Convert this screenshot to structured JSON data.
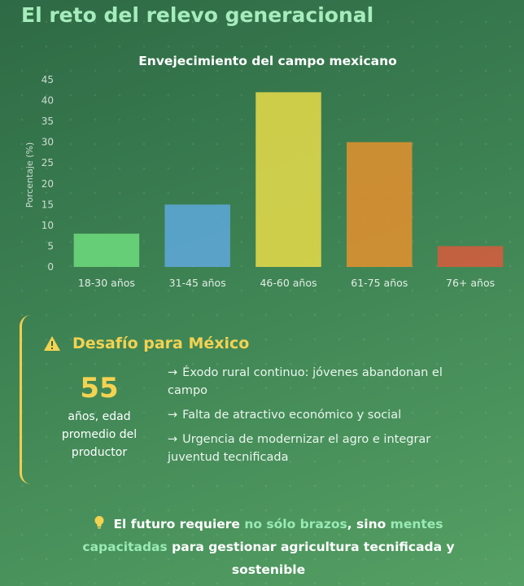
{
  "page": {
    "title": "El reto del relevo generacional"
  },
  "chart_data": {
    "type": "bar",
    "title": "Envejecimiento del campo mexicano",
    "xlabel": "",
    "ylabel": "Porcentaje (%)",
    "categories": [
      "18-30 años",
      "31-45 años",
      "46-60 años",
      "61-75 años",
      "76+ años"
    ],
    "values": [
      8,
      15,
      42,
      30,
      5
    ],
    "colors": [
      "#6fdc7c",
      "#5fa8dc",
      "#e8dc4a",
      "#e6902e",
      "#d95a3c"
    ],
    "ylim": [
      0,
      45
    ],
    "yticks": [
      0,
      5,
      10,
      15,
      20,
      25,
      30,
      35,
      40,
      45
    ],
    "grid": false,
    "legend": "none"
  },
  "challenge": {
    "icon": "warning-icon",
    "title": "Desafío para México",
    "stat_value": "55",
    "stat_label": "años, edad promedio del productor",
    "arrow": "→",
    "points": [
      "Éxodo rural continuo: jóvenes abandonan el campo",
      "Falta de atractivo económico y social",
      "Urgencia de modernizar el agro e integrar juventud tecnificada"
    ]
  },
  "footer": {
    "icon": "lightbulb-icon",
    "part1": "El futuro requiere ",
    "hl1": "no sólo brazos",
    "part2": ", sino ",
    "hl2": "mentes capacitadas",
    "part3": " para gestionar agricultura tecnificada y sostenible"
  }
}
